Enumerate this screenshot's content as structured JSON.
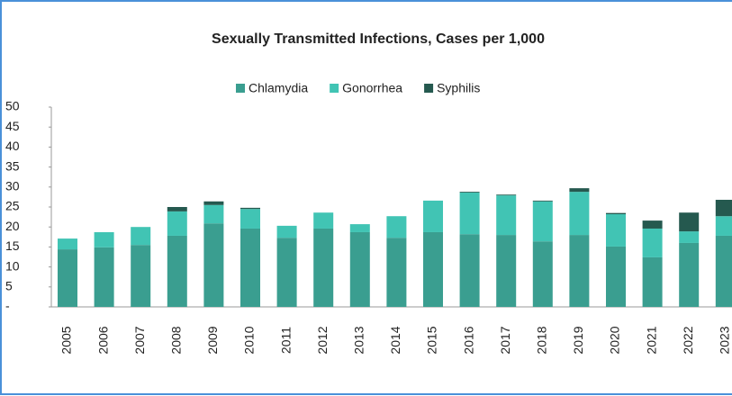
{
  "chart_data": {
    "type": "stacked-bar",
    "title": "Sexually Transmitted Infections, Cases per 1,000",
    "categories": [
      "2005",
      "2006",
      "2007",
      "2008",
      "2009",
      "2010",
      "2011",
      "2012",
      "2013",
      "2014",
      "2015",
      "2016",
      "2017",
      "2018",
      "2019",
      "2020",
      "2021",
      "2022",
      "2023"
    ],
    "series": [
      {
        "name": "Chlamydia",
        "color": "#3a9e90",
        "values": [
          14.4,
          14.9,
          15.5,
          17.8,
          20.9,
          19.6,
          17.3,
          19.6,
          18.7,
          17.3,
          18.7,
          18.2,
          18.0,
          16.4,
          18.0,
          15.1,
          12.4,
          16.0,
          17.8
        ]
      },
      {
        "name": "Gonorrhea",
        "color": "#41c4b4",
        "values": [
          2.7,
          3.8,
          4.5,
          6.1,
          4.6,
          4.9,
          3.0,
          4.0,
          2.0,
          5.4,
          7.9,
          10.4,
          9.9,
          10.0,
          10.8,
          8.1,
          7.2,
          2.9,
          4.9
        ]
      },
      {
        "name": "Syphilis",
        "color": "#25594f",
        "values": [
          0,
          0,
          0,
          1.1,
          0.9,
          0.3,
          0,
          0,
          0,
          0,
          0,
          0.2,
          0.2,
          0.2,
          0.9,
          0.3,
          2.0,
          4.7,
          4.1
        ]
      }
    ],
    "ylim": [
      0,
      50
    ],
    "yticks": [
      {
        "value": 0,
        "label": "-"
      },
      5,
      10,
      15,
      20,
      25,
      30,
      35,
      40,
      45,
      50
    ],
    "legend": "top"
  }
}
